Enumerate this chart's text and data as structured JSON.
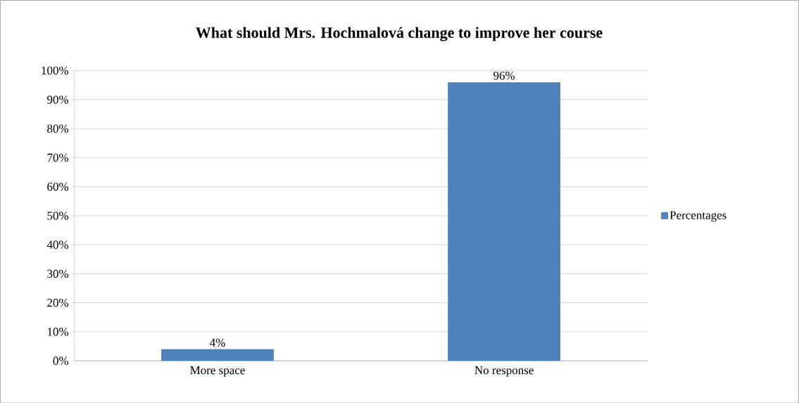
{
  "chart_data": {
    "type": "bar",
    "title": "What should Mrs. Hochmalová change to improve her course",
    "categories": [
      "More space",
      "No response"
    ],
    "series": [
      {
        "name": "Percentages",
        "color": "#4f81bd",
        "values": [
          4,
          96
        ],
        "value_labels": [
          "4%",
          "96%"
        ]
      }
    ],
    "ylim": [
      0,
      100
    ],
    "yticks": [
      {
        "value": 0,
        "label": "0%"
      },
      {
        "value": 10,
        "label": "10%"
      },
      {
        "value": 20,
        "label": "20%"
      },
      {
        "value": 30,
        "label": "30%"
      },
      {
        "value": 40,
        "label": "40%"
      },
      {
        "value": 50,
        "label": "50%"
      },
      {
        "value": 60,
        "label": "60%"
      },
      {
        "value": 70,
        "label": "70%"
      },
      {
        "value": 80,
        "label": "80%"
      },
      {
        "value": 90,
        "label": "90%"
      },
      {
        "value": 100,
        "label": "100%"
      }
    ],
    "grid": "y",
    "legend": "right"
  }
}
